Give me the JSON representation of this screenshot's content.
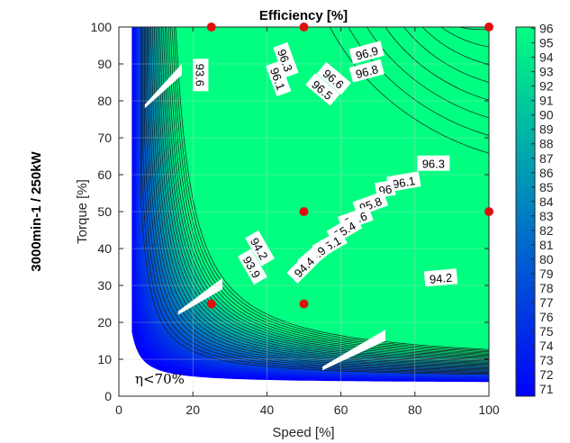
{
  "chart_data": {
    "type": "contour",
    "title": "Efficiency [%]",
    "xlabel": "Speed [%]",
    "ylabel": "Torque [%]",
    "side_label": "3000min-1 / 250kW",
    "xlim": [
      0,
      100
    ],
    "ylim": [
      0,
      100
    ],
    "x_ticks": [
      "0",
      "20",
      "40",
      "60",
      "80",
      "100"
    ],
    "y_ticks": [
      "0",
      "10",
      "20",
      "30",
      "40",
      "50",
      "60",
      "70",
      "80",
      "90",
      "100"
    ],
    "colorbar": {
      "min": 71,
      "max": 96,
      "ticks": [
        "71",
        "72",
        "73",
        "74",
        "75",
        "76",
        "77",
        "78",
        "79",
        "80",
        "81",
        "82",
        "83",
        "84",
        "85",
        "86",
        "87",
        "88",
        "89",
        "90",
        "91",
        "92",
        "93",
        "94",
        "95",
        "96"
      ],
      "low_color": "#0000ff",
      "high_color": "#00ff80"
    },
    "contour_labels": [
      "96.9",
      "96.8",
      "96.6",
      "96.5",
      "96.3",
      "96.1",
      "93.6",
      "96.3",
      "96.1",
      "96",
      "95.8",
      "95.6",
      "95.4",
      "95.1",
      "94.9",
      "94.4",
      "94.2",
      "93.9",
      "94.2"
    ],
    "points": [
      {
        "x": 25,
        "y": 100
      },
      {
        "x": 50,
        "y": 100
      },
      {
        "x": 100,
        "y": 100
      },
      {
        "x": 50,
        "y": 50
      },
      {
        "x": 100,
        "y": 50
      },
      {
        "x": 25,
        "y": 25
      },
      {
        "x": 50,
        "y": 25
      }
    ],
    "point_color": "#e01010",
    "annotation": "η<70%",
    "grid": true
  }
}
